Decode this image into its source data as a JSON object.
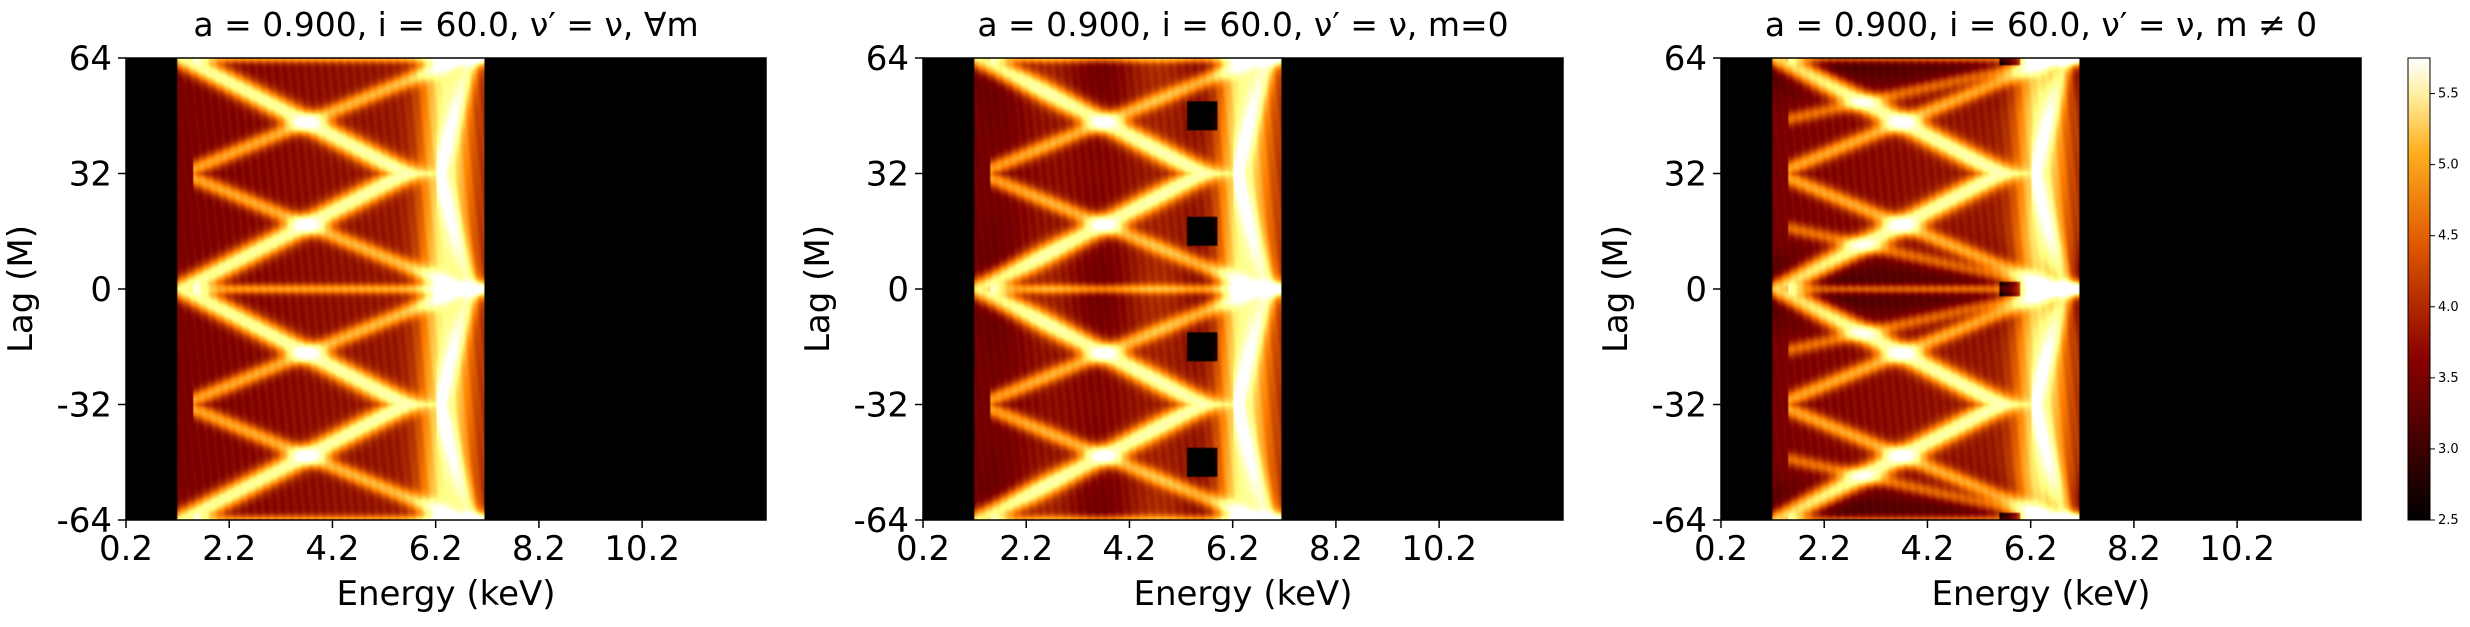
{
  "chart_data": [
    {
      "type": "heatmap",
      "title": "a = 0.900, i = 60.0, ν′ = ν, ∀m",
      "xlabel": "Energy (keV)",
      "ylabel": "Lag (M)",
      "xlim": [
        0.2,
        12.6
      ],
      "ylim": [
        -64,
        64
      ],
      "xticks": [
        "0.2",
        "2.2",
        "4.2",
        "6.2",
        "8.2",
        "10.2"
      ],
      "yticks": [
        "-64",
        "-32",
        "0",
        "32",
        "64"
      ],
      "variant": "all_m"
    },
    {
      "type": "heatmap",
      "title": "a = 0.900, i = 60.0, ν′ = ν, m=0",
      "xlabel": "Energy (keV)",
      "ylabel": "Lag (M)",
      "xlim": [
        0.2,
        12.6
      ],
      "ylim": [
        -64,
        64
      ],
      "xticks": [
        "0.2",
        "2.2",
        "4.2",
        "6.2",
        "8.2",
        "10.2"
      ],
      "yticks": [
        "-64",
        "-32",
        "0",
        "32",
        "64"
      ],
      "variant": "m0"
    },
    {
      "type": "heatmap",
      "title": "a = 0.900, i = 60.0, ν′ = ν, m ≠ 0",
      "xlabel": "Energy (keV)",
      "ylabel": "Lag (M)",
      "xlim": [
        0.2,
        12.6
      ],
      "ylim": [
        -64,
        64
      ],
      "xticks": [
        "0.2",
        "2.2",
        "4.2",
        "6.2",
        "8.2",
        "10.2"
      ],
      "yticks": [
        "-64",
        "-32",
        "0",
        "32",
        "64"
      ],
      "variant": "m_nonzero"
    }
  ],
  "colorbar": {
    "colormap": "afmhot",
    "range": [
      2.5,
      5.75
    ],
    "ticks": [
      "2.5",
      "3.0",
      "3.5",
      "4.0",
      "4.5",
      "5.0",
      "5.5"
    ]
  }
}
